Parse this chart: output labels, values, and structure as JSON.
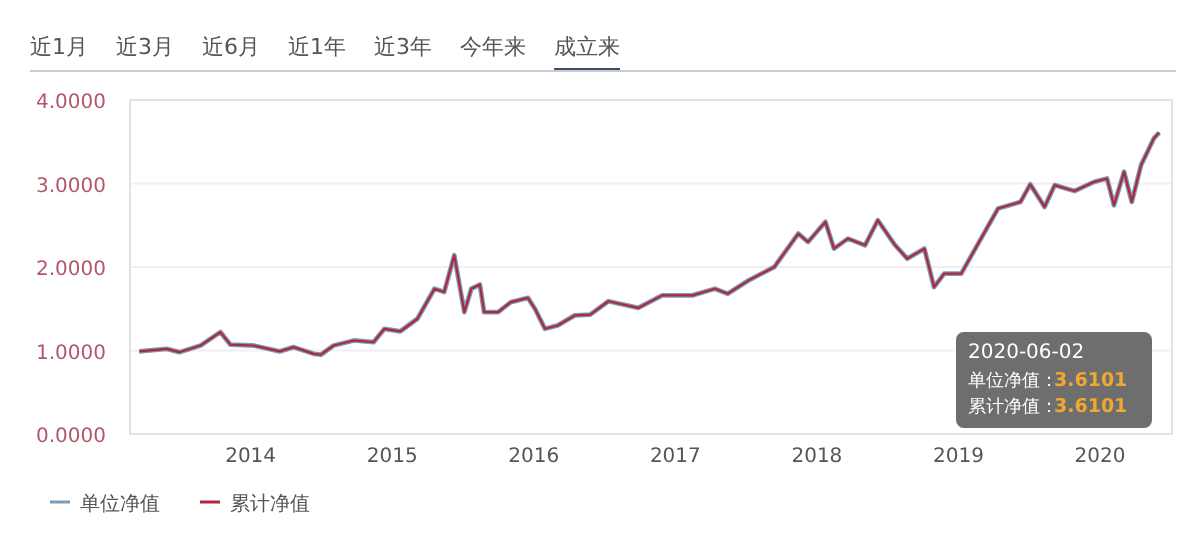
{
  "chart_data": {
    "type": "line",
    "xlim": [
      "2013-02-24",
      "2020-07-05"
    ],
    "xticks": [
      "2014",
      "2015",
      "2016",
      "2017",
      "2018",
      "2019",
      "2020"
    ],
    "ylim": [
      0,
      4
    ],
    "yticks": [
      {
        "value": 0,
        "label": "0.0000"
      },
      {
        "value": 1,
        "label": "1.0000"
      },
      {
        "value": 2,
        "label": "2.0000"
      },
      {
        "value": 3,
        "label": "3.0000"
      },
      {
        "value": 4,
        "label": "4.0000"
      }
    ],
    "grid": "y",
    "legend": "bottom left",
    "marker": "none",
    "line_style": "solid",
    "x": [
      "2013-03-20",
      "2013-05-30",
      "2013-07-01",
      "2013-08-25",
      "2013-10-15",
      "2013-11-10",
      "2014-01-08",
      "2014-03-17",
      "2014-04-22",
      "2014-06-13",
      "2014-07-01",
      "2014-08-03",
      "2014-09-24",
      "2014-11-14",
      "2014-12-12",
      "2015-01-22",
      "2015-03-07",
      "2015-04-20",
      "2015-05-15",
      "2015-06-10",
      "2015-07-06",
      "2015-07-24",
      "2015-08-15",
      "2015-08-26",
      "2015-10-01",
      "2015-11-03",
      "2015-12-17",
      "2016-01-04",
      "2016-01-30",
      "2016-03-03",
      "2016-04-16",
      "2016-05-26",
      "2016-07-12",
      "2016-09-27",
      "2016-11-28",
      "2017-02-14",
      "2017-04-13",
      "2017-05-16",
      "2017-07-09",
      "2017-09-13",
      "2017-11-14",
      "2017-12-09",
      "2018-01-23",
      "2018-02-14",
      "2018-03-22",
      "2018-05-05",
      "2018-06-07",
      "2018-07-20",
      "2018-08-22",
      "2018-10-05",
      "2018-10-30",
      "2018-11-25",
      "2019-01-08",
      "2019-02-28",
      "2019-04-13",
      "2019-06-10",
      "2019-07-05",
      "2019-08-11",
      "2019-09-06",
      "2019-10-27",
      "2019-12-17",
      "2020-01-19",
      "2020-02-06",
      "2020-03-03",
      "2020-03-23",
      "2020-04-16",
      "2020-05-19",
      "2020-06-02"
    ],
    "series": [
      {
        "name": "单位净值",
        "color": "#7b9bb8",
        "values": [
          0.99,
          1.02,
          0.98,
          1.06,
          1.22,
          1.07,
          1.06,
          0.99,
          1.04,
          0.96,
          0.95,
          1.06,
          1.12,
          1.1,
          1.26,
          1.23,
          1.38,
          1.74,
          1.7,
          2.14,
          1.46,
          1.74,
          1.79,
          1.46,
          1.46,
          1.58,
          1.63,
          1.5,
          1.26,
          1.3,
          1.42,
          1.43,
          1.59,
          1.51,
          1.66,
          1.66,
          1.74,
          1.68,
          1.84,
          2.0,
          2.4,
          2.3,
          2.54,
          2.22,
          2.34,
          2.26,
          2.56,
          2.27,
          2.1,
          2.22,
          1.76,
          1.92,
          1.92,
          2.34,
          2.7,
          2.78,
          2.99,
          2.72,
          2.98,
          2.91,
          3.02,
          3.06,
          2.74,
          3.14,
          2.78,
          3.22,
          3.54,
          3.6101
        ]
      },
      {
        "name": "累计净值",
        "color": "#b0263a",
        "values": [
          0.99,
          1.02,
          0.98,
          1.06,
          1.22,
          1.07,
          1.06,
          0.99,
          1.04,
          0.96,
          0.95,
          1.06,
          1.12,
          1.1,
          1.26,
          1.23,
          1.38,
          1.74,
          1.7,
          2.14,
          1.46,
          1.74,
          1.79,
          1.46,
          1.46,
          1.58,
          1.63,
          1.5,
          1.26,
          1.3,
          1.42,
          1.43,
          1.59,
          1.51,
          1.66,
          1.66,
          1.74,
          1.68,
          1.84,
          2.0,
          2.4,
          2.3,
          2.54,
          2.22,
          2.34,
          2.26,
          2.56,
          2.27,
          2.1,
          2.22,
          1.76,
          1.92,
          1.92,
          2.34,
          2.7,
          2.78,
          2.99,
          2.72,
          2.98,
          2.91,
          3.02,
          3.06,
          2.74,
          3.14,
          2.78,
          3.22,
          3.54,
          3.6101
        ]
      }
    ],
    "annotations": [
      "近1月",
      "近3月",
      "近6月",
      "近1年",
      "近3年",
      "今年来",
      "成立来",
      "2020-06-02",
      "单位净值：",
      "3.6101",
      "累计净值：",
      "3.6101"
    ]
  }
}
